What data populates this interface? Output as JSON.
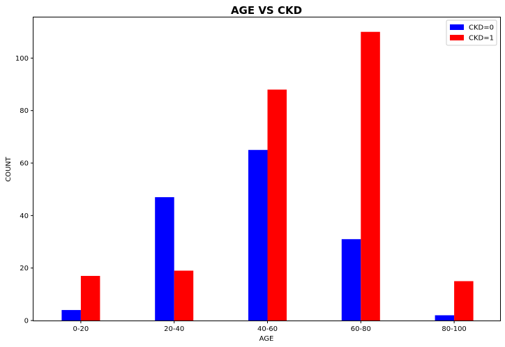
{
  "chart_data": {
    "type": "bar",
    "title": "AGE VS CKD",
    "xlabel": "AGE",
    "ylabel": "COUNT",
    "categories": [
      "0-20",
      "20-40",
      "40-60",
      "60-80",
      "80-100"
    ],
    "series": [
      {
        "name": "CKD=0",
        "color": "#0000ff",
        "values": [
          4,
          47,
          65,
          31,
          2
        ]
      },
      {
        "name": "CKD=1",
        "color": "#ff0000",
        "values": [
          17,
          19,
          88,
          110,
          15
        ]
      }
    ],
    "ylim": [
      0,
      115.5
    ],
    "yticks": [
      0,
      20,
      40,
      60,
      80,
      100
    ],
    "grid": false,
    "legend_position": "top-right"
  }
}
